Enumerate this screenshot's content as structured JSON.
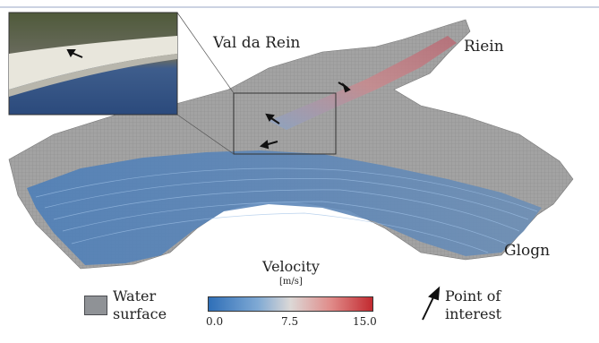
{
  "labels": {
    "val_da_rein": "Val da Rein",
    "rein": "Riein",
    "glogn": "Glogn"
  },
  "legend": {
    "water_surface": [
      "Water",
      "surface"
    ],
    "velocity_title": "Velocity",
    "velocity_unit": "[m/s]",
    "velocity_ticks": [
      "0.0",
      "7.5",
      "15.0"
    ],
    "velocity_range": [
      0,
      15
    ],
    "point_of_interest": [
      "Point of",
      "interest"
    ]
  },
  "colors": {
    "terrain": "#9a9a9a",
    "water_surface": "#8f9296",
    "velocity_low": "#3a78c0",
    "velocity_mid": "#d9d3cf",
    "velocity_high": "#c9363a",
    "arrow": "#111111"
  }
}
